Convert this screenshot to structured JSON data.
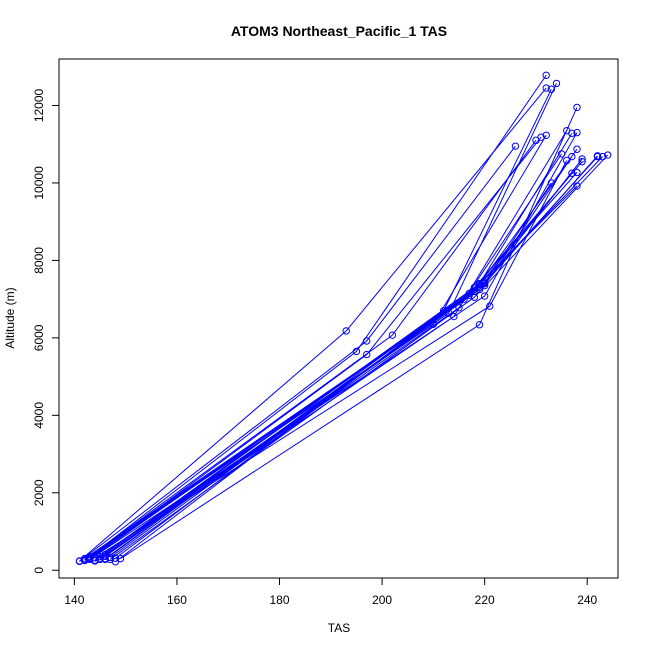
{
  "chart_data": {
    "type": "line",
    "title": "ATOM3 Northeast_Pacific_1 TAS",
    "xlabel": "TAS",
    "ylabel": "Altitude (m)",
    "xlim": [
      137,
      246
    ],
    "ylim": [
      -200,
      13200
    ],
    "x_ticks": [
      "140",
      "160",
      "180",
      "200",
      "220",
      "240"
    ],
    "y_ticks": [
      "0",
      "2000",
      "4000",
      "6000",
      "8000",
      "10000",
      "12000"
    ],
    "series_color": "#0000ff",
    "marker": "open-circle",
    "grid": false,
    "series": [
      {
        "points": [
          [
            141,
            230
          ],
          [
            197,
            5920
          ],
          [
            226,
            10950
          ]
        ]
      },
      {
        "points": [
          [
            141,
            240
          ],
          [
            193,
            6180
          ],
          [
            232,
            12450
          ]
        ]
      },
      {
        "points": [
          [
            142,
            250
          ],
          [
            195,
            5650
          ],
          [
            232,
            12780
          ]
        ]
      },
      {
        "points": [
          [
            142,
            260
          ],
          [
            202,
            6070
          ],
          [
            230,
            11100
          ]
        ]
      },
      {
        "points": [
          [
            143,
            300
          ],
          [
            197,
            5570
          ],
          [
            231,
            11180
          ]
        ]
      },
      {
        "points": [
          [
            143,
            350
          ],
          [
            210,
            6350
          ],
          [
            232,
            11230
          ]
        ]
      },
      {
        "points": [
          [
            144,
            240
          ],
          [
            212,
            6700
          ],
          [
            233,
            12420
          ]
        ]
      },
      {
        "points": [
          [
            145,
            350
          ],
          [
            213,
            6640
          ],
          [
            234,
            12570
          ]
        ]
      },
      {
        "points": [
          [
            146,
            400
          ],
          [
            214,
            6550
          ],
          [
            236,
            11350
          ]
        ]
      },
      {
        "points": [
          [
            146,
            360
          ],
          [
            215,
            6780
          ],
          [
            235,
            10750
          ]
        ]
      },
      {
        "points": [
          [
            148,
            220
          ],
          [
            219,
            7400
          ],
          [
            237,
            11280
          ]
        ]
      },
      {
        "points": [
          [
            149,
            300
          ],
          [
            219,
            6340
          ],
          [
            238,
            11950
          ]
        ]
      },
      {
        "points": [
          [
            143,
            280
          ],
          [
            220,
            7080
          ],
          [
            238,
            11300
          ]
        ]
      },
      {
        "points": [
          [
            144,
            320
          ],
          [
            221,
            6820
          ],
          [
            236,
            10580
          ]
        ]
      },
      {
        "points": [
          [
            145,
            300
          ],
          [
            220,
            7350
          ],
          [
            237,
            10680
          ]
        ]
      },
      {
        "points": [
          [
            146,
            280
          ],
          [
            219,
            7380
          ],
          [
            238,
            10870
          ]
        ]
      },
      {
        "points": [
          [
            147,
            330
          ],
          [
            218,
            7200
          ],
          [
            237,
            10250
          ]
        ]
      },
      {
        "points": [
          [
            148,
            310
          ],
          [
            217,
            7150
          ],
          [
            238,
            10270
          ]
        ]
      },
      {
        "points": [
          [
            142,
            270
          ],
          [
            216,
            7000
          ],
          [
            238,
            9920
          ]
        ]
      },
      {
        "points": [
          [
            143,
            290
          ],
          [
            220,
            7420
          ],
          [
            233,
            10000
          ]
        ]
      },
      {
        "points": [
          [
            144,
            260
          ],
          [
            218,
            7300
          ],
          [
            239,
            10550
          ]
        ]
      },
      {
        "points": [
          [
            145,
            280
          ],
          [
            219,
            7250
          ],
          [
            242,
            10700
          ]
        ]
      },
      {
        "points": [
          [
            146,
            300
          ],
          [
            217,
            7100
          ],
          [
            243,
            10680
          ]
        ]
      },
      {
        "points": [
          [
            147,
            280
          ],
          [
            218,
            7050
          ],
          [
            244,
            10720
          ]
        ]
      },
      {
        "points": [
          [
            142,
            300
          ],
          [
            219,
            7300
          ],
          [
            242,
            10680
          ]
        ]
      },
      {
        "points": [
          [
            143,
            320
          ],
          [
            220,
            7400
          ],
          [
            239,
            10620
          ]
        ]
      }
    ]
  }
}
